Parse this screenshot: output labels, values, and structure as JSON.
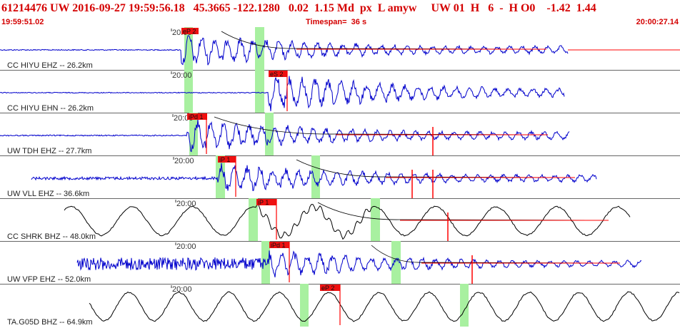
{
  "header": {
    "event_line": "61214476 UW 2016-09-27 19:59:56.18   45.3665 -122.1280   0.02  1.15 Md  px  L amyw     UW 01  H   6  -  H O0    -1.42  1.44",
    "start_time": "19:59:51.02",
    "timespan": "Timespan=  36 s",
    "end_time": "20:00:27.14"
  },
  "colors": {
    "header_text": "#d40000",
    "waveform_blue": "#0000cc",
    "waveform_black": "#000000",
    "pick_line": "#ff0000",
    "pick_label_bg": "#ee1111",
    "window_highlight": "#a8f0a0",
    "separator": "#666666"
  },
  "chart_data": {
    "type": "seismogram",
    "time_range": [
      "19:59:51.02",
      "20:00:27.14"
    ],
    "timespan_s": 36,
    "traces": [
      {
        "label": "CC HIYU EHZ -- 26.2km",
        "tick_label": "20:00",
        "pick_label": "eP 2",
        "pick_time_s": 8.5,
        "waveform_color": "blue",
        "decay_curve": true
      },
      {
        "label": "CC HIYU EHN -- 26.2km",
        "tick_label": "20:00",
        "pick_label": "eS 2",
        "pick_time_s": 14.5,
        "waveform_color": "blue",
        "decay_curve": false
      },
      {
        "label": "UW TDH EHZ -- 27.7km",
        "tick_label": "20:00",
        "pick_label": "iPd 1",
        "pick_time_s": 10.0,
        "waveform_color": "blue",
        "decay_curve": true
      },
      {
        "label": "UW VLL EHZ -- 36.6km",
        "tick_label": "20:00",
        "pick_label": "iP 1",
        "pick_time_s": 11.5,
        "waveform_color": "blue",
        "decay_curve": true
      },
      {
        "label": "CC SHRK BHZ -- 48.0km",
        "tick_label": "20:00",
        "pick_label": "iP 1",
        "pick_time_s": 14.0,
        "waveform_color": "black",
        "decay_curve": true
      },
      {
        "label": "UW VFP EHZ -- 52.0km",
        "tick_label": "20:00",
        "pick_label": "iPd 1",
        "pick_time_s": 14.5,
        "waveform_color": "blue",
        "decay_curve": true
      },
      {
        "label": "TA.G05D BHZ -- 64.9km",
        "tick_label": "20:00",
        "pick_label": "eP 2",
        "pick_time_s": 17.0,
        "waveform_color": "black",
        "decay_curve": false
      }
    ]
  }
}
